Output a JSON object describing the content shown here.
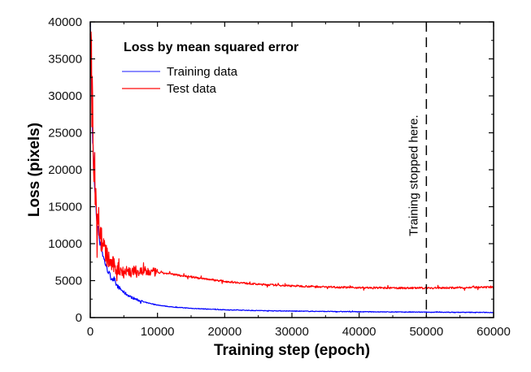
{
  "chart_data": {
    "type": "line",
    "title": "Loss by mean squared error",
    "xlabel": "Training step (epoch)",
    "ylabel": "Loss (pixels)",
    "xlim": [
      0,
      60000
    ],
    "ylim": [
      0,
      40000
    ],
    "x_ticks": [
      0,
      10000,
      20000,
      30000,
      40000,
      50000,
      60000
    ],
    "x_tick_labels": [
      "0",
      "10000",
      "20000",
      "30000",
      "40000",
      "50000",
      "60000"
    ],
    "y_ticks": [
      0,
      5000,
      10000,
      15000,
      20000,
      25000,
      30000,
      35000,
      40000
    ],
    "y_tick_labels": [
      "0",
      "5000",
      "10000",
      "15000",
      "20000",
      "25000",
      "30000",
      "35000",
      "40000"
    ],
    "grid": false,
    "legend_position": "top-left",
    "series": [
      {
        "name": "Training data",
        "color": "#0000ff",
        "legend_color": "#6666ff",
        "x": [
          0,
          300,
          600,
          1000,
          1500,
          2000,
          2500,
          3000,
          4000,
          5000,
          6000,
          7000,
          8000,
          10000,
          12000,
          15000,
          20000,
          25000,
          30000,
          35000,
          40000,
          45000,
          50000,
          55000,
          60000
        ],
        "y": [
          40000,
          26000,
          18000,
          13000,
          10000,
          8000,
          6600,
          5600,
          4300,
          3400,
          2800,
          2400,
          2100,
          1700,
          1450,
          1250,
          1050,
          950,
          880,
          830,
          790,
          760,
          730,
          710,
          700
        ]
      },
      {
        "name": "Test data",
        "color": "#ff0000",
        "legend_color": "#ff3333",
        "x": [
          0,
          300,
          600,
          1000,
          1500,
          2000,
          2500,
          3000,
          4000,
          5000,
          6000,
          7000,
          8000,
          10000,
          12000,
          15000,
          20000,
          25000,
          30000,
          35000,
          40000,
          45000,
          50000,
          55000,
          60000
        ],
        "y": [
          40000,
          28000,
          20000,
          15000,
          11500,
          9500,
          8200,
          7400,
          6600,
          6300,
          6200,
          6200,
          6200,
          6100,
          5900,
          5500,
          4900,
          4500,
          4300,
          4150,
          4050,
          4000,
          4000,
          4050,
          4100
        ]
      }
    ],
    "annotations": [
      {
        "type": "vertical-dashed-line",
        "x": 50000,
        "text": "Training stopped here."
      }
    ]
  }
}
